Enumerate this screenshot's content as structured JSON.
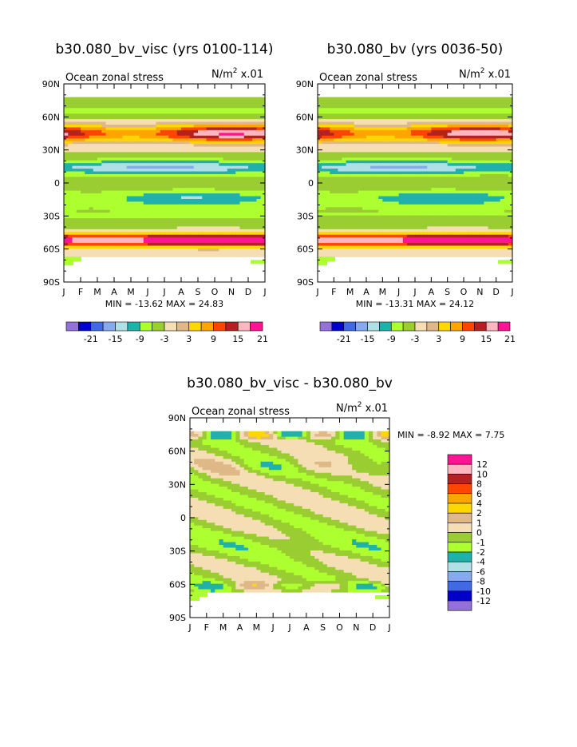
{
  "colors": {
    "scale": [
      "#9370db",
      "#0000cd",
      "#4169e1",
      "#87a9f0",
      "#b0e0e6",
      "#20b2aa",
      "#adff2f",
      "#9acd32",
      "#f5deb3",
      "#deb887",
      "#ffd700",
      "#ffa500",
      "#ff4500",
      "#b22222",
      "#ffb6c1",
      "#ff1493"
    ],
    "diff_scale": [
      "#9370db",
      "#0000cd",
      "#4169e1",
      "#87a9f0",
      "#b0e0e6",
      "#20b2aa",
      "#adff2f",
      "#9acd32",
      "#f5deb3",
      "#deb887",
      "#ffd700",
      "#ffa500",
      "#ff4500",
      "#b22222",
      "#ffb6c1",
      "#ff1493"
    ]
  },
  "chart_data": [
    {
      "type": "heatmap",
      "title": "b30.080_bv_visc (yrs 0100-114)",
      "subtitle": "Ocean zonal stress",
      "units_base": "N/m",
      "units_sup": "2",
      "units_tail": " x.01",
      "x_ticks": [
        "J",
        "F",
        "M",
        "A",
        "M",
        "J",
        "J",
        "A",
        "S",
        "O",
        "N",
        "D",
        "J"
      ],
      "y_ticks": [
        "90N",
        "60N",
        "30N",
        "0",
        "30S",
        "60S",
        "90S"
      ],
      "y_range": [
        -90,
        90
      ],
      "stats": "MIN = -13.62 MAX =  24.83",
      "min": -13.62,
      "max": 24.83,
      "legend_labels": [
        "-21",
        "-15",
        "-9",
        "-3",
        "3",
        "9",
        "15",
        "21"
      ],
      "legend_levels": [
        -24,
        -21,
        -18,
        -15,
        -12,
        -9,
        -6,
        -3,
        0,
        3,
        6,
        9,
        12,
        15,
        18,
        21,
        24
      ]
    },
    {
      "type": "heatmap",
      "title": "b30.080_bv (yrs 0036-50)",
      "subtitle": "Ocean zonal stress",
      "units_base": "N/m",
      "units_sup": "2",
      "units_tail": " x.01",
      "x_ticks": [
        "J",
        "F",
        "M",
        "A",
        "M",
        "J",
        "J",
        "A",
        "S",
        "O",
        "N",
        "D",
        "J"
      ],
      "y_ticks": [
        "90N",
        "60N",
        "30N",
        "0",
        "30S",
        "60S",
        "90S"
      ],
      "y_range": [
        -90,
        90
      ],
      "stats": "MIN = -13.31 MAX =  24.12",
      "min": -13.31,
      "max": 24.12,
      "legend_labels": [
        "-21",
        "-15",
        "-9",
        "-3",
        "3",
        "9",
        "15",
        "21"
      ],
      "legend_levels": [
        -24,
        -21,
        -18,
        -15,
        -12,
        -9,
        -6,
        -3,
        0,
        3,
        6,
        9,
        12,
        15,
        18,
        21,
        24
      ]
    },
    {
      "type": "heatmap",
      "title": "b30.080_bv_visc - b30.080_bv",
      "subtitle": "Ocean zonal stress",
      "units_base": "N/m",
      "units_sup": "2",
      "units_tail": " x.01",
      "x_ticks": [
        "J",
        "F",
        "M",
        "A",
        "M",
        "J",
        "J",
        "A",
        "S",
        "O",
        "N",
        "D",
        "J"
      ],
      "y_ticks": [
        "90N",
        "60N",
        "30N",
        "0",
        "30S",
        "60S",
        "90S"
      ],
      "y_range": [
        -90,
        90
      ],
      "stats": "MIN =  -8.92 MAX =   7.75",
      "min": -8.92,
      "max": 7.75,
      "legend_labels": [
        "12",
        "10",
        "8",
        "6",
        "4",
        "2",
        "1",
        "0",
        "-1",
        "-2",
        "-4",
        "-6",
        "-8",
        "-10",
        "-12"
      ]
    }
  ]
}
